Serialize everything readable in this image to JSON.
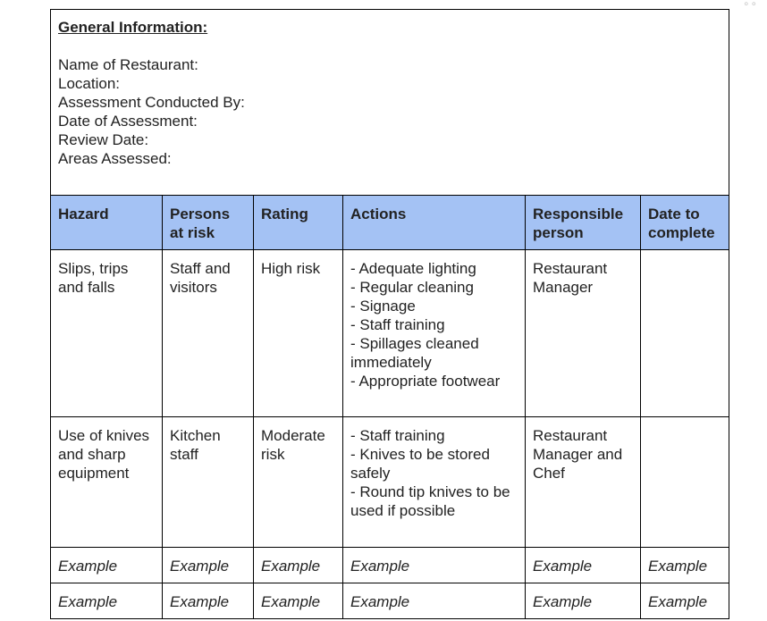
{
  "general": {
    "title": "General Information:",
    "lines": [
      "Name of Restaurant:",
      "Location:",
      "Assessment Conducted By:",
      "Date of Assessment:",
      "Review Date:",
      "Areas Assessed:"
    ]
  },
  "table": {
    "headers": [
      "Hazard",
      "Persons at risk",
      "Rating",
      "Actions",
      "Responsible person",
      "Date to complete"
    ],
    "rows": [
      {
        "hazard": "Slips, trips and falls",
        "persons": "Staff and visitors",
        "rating": "High risk",
        "actions": [
          "- Adequate lighting",
          "- Regular cleaning",
          "- Signage",
          "- Staff training",
          "- Spillages cleaned immediately",
          "- Appropriate footwear"
        ],
        "responsible": "Restaurant Manager",
        "date": ""
      },
      {
        "hazard": "Use of knives and sharp equipment",
        "persons": "Kitchen staff",
        "rating": "Moderate risk",
        "actions": [
          "- Staff training",
          "- Knives to be stored safely",
          "- Round tip knives to be used if possible"
        ],
        "responsible": "Restaurant Manager and Chef",
        "date": ""
      }
    ],
    "example_rows": [
      [
        "Example",
        "Example",
        "Example",
        "Example",
        "Example",
        "Example"
      ],
      [
        "Example",
        "Example",
        "Example",
        "Example",
        "Example",
        "Example"
      ]
    ]
  },
  "icons": {
    "corner": "more-options-icon"
  },
  "colors": {
    "header_bg": "#a4c2f4",
    "border": "#000000"
  }
}
